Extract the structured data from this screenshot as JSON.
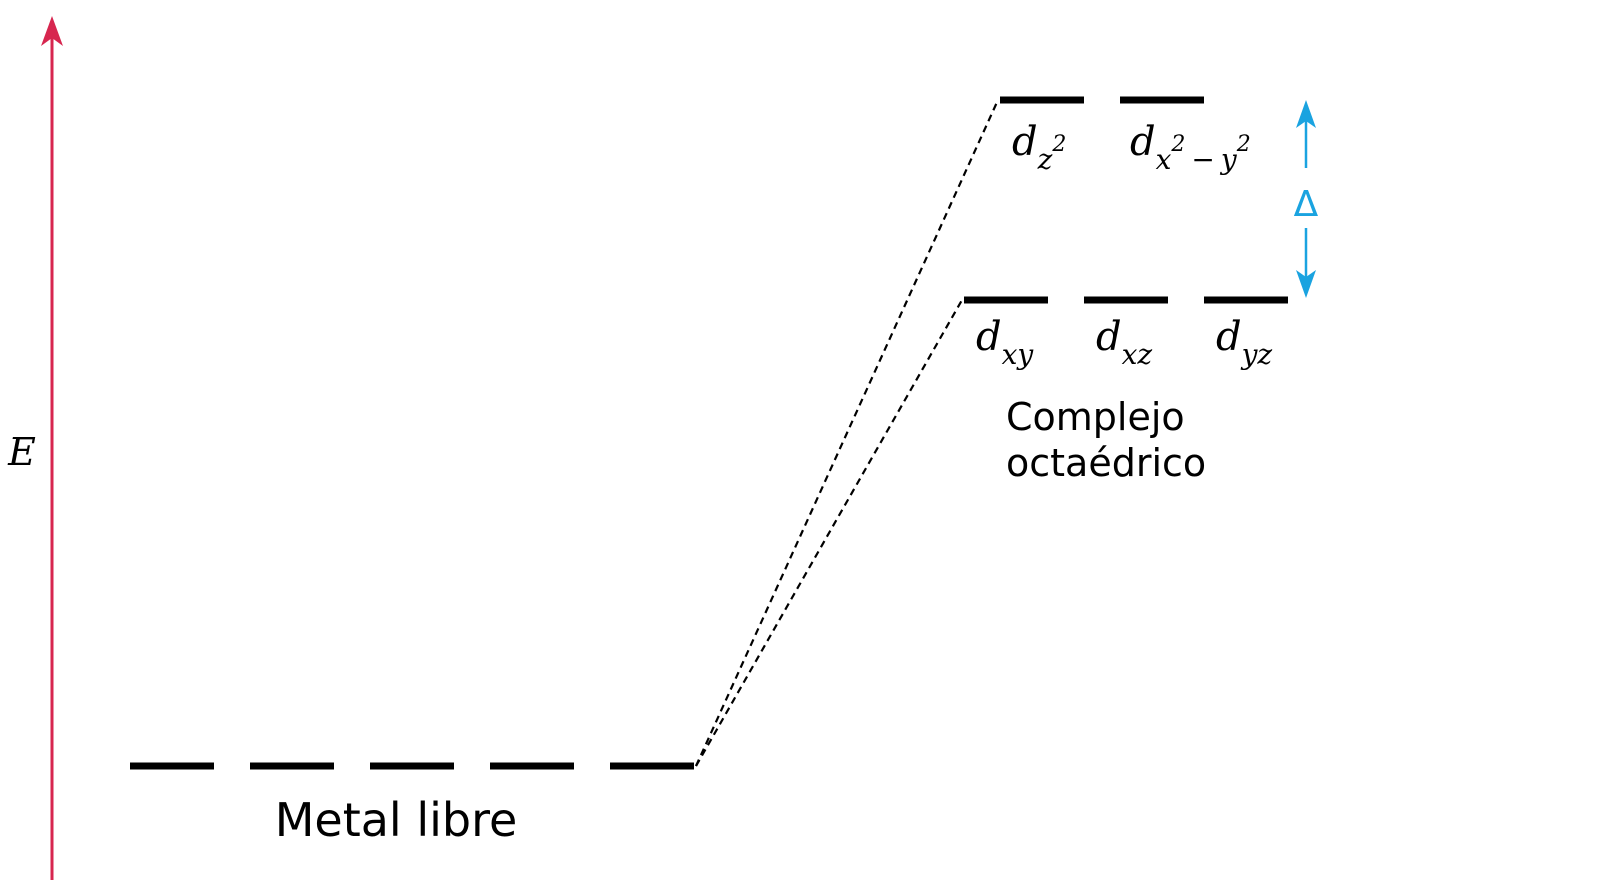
{
  "energy_axis_label": "E",
  "free_metal_label": "Metal libre",
  "complex_label_line1": "Complejo",
  "complex_label_line2": "octaédrico",
  "splitting_label": "Δ",
  "orbital_base": "d",
  "eg_orbitals": [
    {
      "base": "d",
      "sub": "z",
      "sup": "2"
    },
    {
      "base": "d",
      "sub_a": "x",
      "sup_a": "2",
      "minus": "−",
      "sub_b": "y",
      "sup_b": "2"
    }
  ],
  "t2g_orbitals": [
    {
      "base": "d",
      "sub": "xy"
    },
    {
      "base": "d",
      "sub": "xz"
    },
    {
      "base": "d",
      "sub": "yz"
    }
  ],
  "free_metal_level_count": 5,
  "eg_level_count": 2,
  "t2g_level_count": 3,
  "colors": {
    "energy_axis": "#d7264f",
    "splitting_arrow": "#1aa3e0",
    "levels": "#000000",
    "text": "#000000"
  }
}
